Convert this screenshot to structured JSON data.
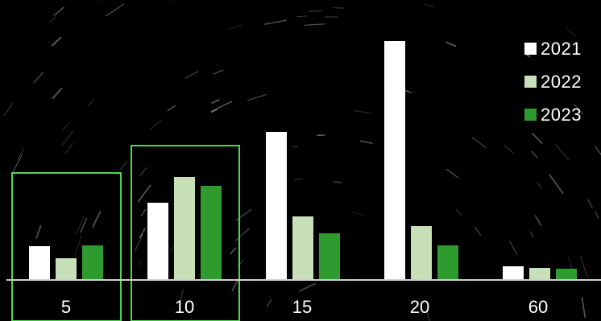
{
  "chart_data": {
    "type": "bar",
    "categories": [
      "5",
      "10",
      "15",
      "20",
      "60"
    ],
    "series": [
      {
        "name": "2021",
        "color": "#ffffff",
        "values": [
          42,
          96,
          184,
          297,
          17
        ]
      },
      {
        "name": "2022",
        "color": "#c8e0b8",
        "values": [
          27,
          128,
          79,
          67,
          15
        ]
      },
      {
        "name": "2023",
        "color": "#2e9b2e",
        "values": [
          43,
          117,
          58,
          43,
          14
        ]
      }
    ],
    "highlighted_categories": [
      "5",
      "10"
    ],
    "highlight_color": "#4cd94c",
    "grid": false,
    "legend_position": "top-right"
  }
}
